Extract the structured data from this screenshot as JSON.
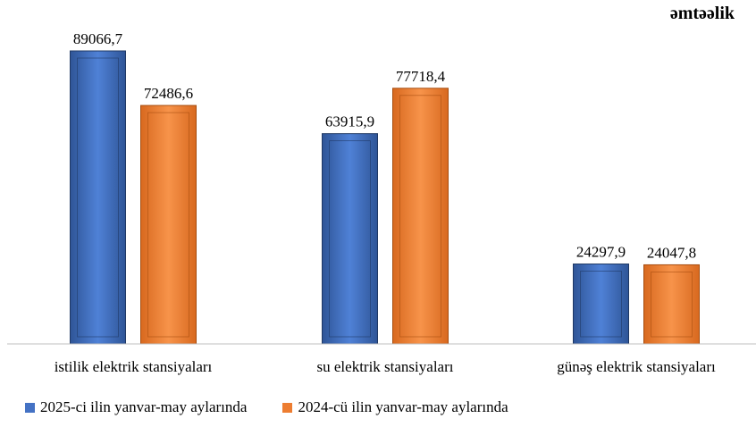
{
  "unit_label": "əmtəəlik",
  "chart_data": {
    "type": "bar",
    "categories": [
      "istilik elektrik stansiyaları",
      "su elektrik stansiyaları",
      "günəş elektrik  stansiyaları"
    ],
    "series": [
      {
        "name": "2025-ci ilin yanvar-may aylarında",
        "values": [
          89066.7,
          63915.9,
          24297.9
        ],
        "labels": [
          "89066,7",
          "63915,9",
          "24297,9"
        ],
        "color": "#4472C4"
      },
      {
        "name": "2024-cü ilin yanvar-may aylarında",
        "values": [
          72486.6,
          77718.4,
          24047.8
        ],
        "labels": [
          "72486,6",
          "77718,4",
          "24047,8"
        ],
        "color": "#ED7D31"
      }
    ],
    "ylim": [
      0,
      95000
    ],
    "grid": false,
    "legend_position": "bottom"
  }
}
